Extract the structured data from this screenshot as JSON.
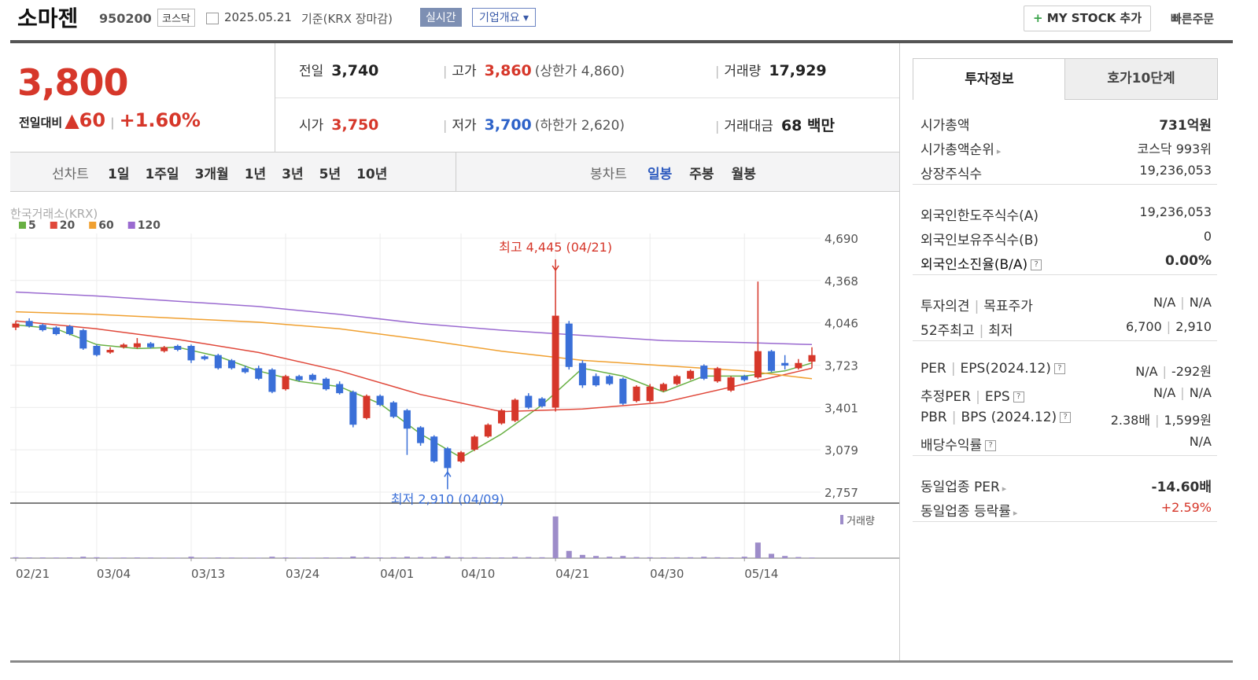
{
  "header": {
    "name": "소마젠",
    "code": "950200",
    "market": "코스닥",
    "date": "2025.05.21",
    "basis": "기준(KRX 장마감)",
    "realtime": "실시간",
    "company": "기업개요",
    "mystock": "MY STOCK 추가",
    "order": "빠른주문"
  },
  "quote": {
    "price": "3,800",
    "change_label": "전일대비",
    "change": "60",
    "change_pct": "+1.60%",
    "fields": [
      {
        "label": "전일",
        "value": "3,740"
      },
      {
        "label": "고가",
        "value": "3,860",
        "extra": "(상한가 4,860)"
      },
      {
        "label": "거래량",
        "value": "17,929"
      },
      {
        "label": "시가",
        "value": "3,750"
      },
      {
        "label": "저가",
        "value": "3,700",
        "extra": "(하한가 2,620)"
      },
      {
        "label": "거래대금",
        "value": "68 백만"
      }
    ]
  },
  "periods": {
    "label": "선차트",
    "items": [
      "1일",
      "1주일",
      "3개월",
      "1년",
      "3년",
      "5년",
      "10년"
    ],
    "candle_label": "봉차트",
    "candle_items": [
      "일봉",
      "주봉",
      "월봉"
    ]
  },
  "chart_data": {
    "type": "candlestick",
    "source": "한국거래소(KRX)",
    "categories": [
      "02/21",
      null,
      null,
      null,
      null,
      null,
      "03/04",
      null,
      null,
      null,
      null,
      null,
      null,
      "03/13",
      null,
      null,
      null,
      null,
      null,
      null,
      "03/24",
      null,
      null,
      null,
      null,
      null,
      null,
      "04/01",
      null,
      null,
      null,
      null,
      null,
      "04/10",
      null,
      null,
      null,
      null,
      null,
      null,
      "04/21",
      null,
      null,
      null,
      null,
      null,
      null,
      "04/30",
      null,
      null,
      null,
      null,
      null,
      null,
      "05/14",
      null,
      null,
      null,
      null,
      null
    ],
    "open": [
      4010,
      4060,
      4030,
      4010,
      4020,
      3990,
      3870,
      3820,
      3860,
      3860,
      3890,
      3830,
      3870,
      3870,
      3790,
      3800,
      3760,
      3700,
      3700,
      3690,
      3540,
      3640,
      3650,
      3620,
      3580,
      3520,
      3320,
      3490,
      3440,
      3380,
      3250,
      3180,
      3090,
      2990,
      3080,
      3180,
      3280,
      3300,
      3490,
      3470,
      3400,
      4040,
      3740,
      3640,
      3640,
      3620,
      3450,
      3450,
      3530,
      3580,
      3620,
      3720,
      3600,
      3530,
      3640,
      3630,
      3830,
      3740,
      3700,
      3750
    ],
    "high": [
      4060,
      4080,
      4040,
      4020,
      4030,
      4000,
      3880,
      3860,
      3890,
      3930,
      3900,
      3870,
      3880,
      3880,
      3800,
      3810,
      3770,
      3720,
      3720,
      3700,
      3650,
      3650,
      3660,
      3630,
      3600,
      3530,
      3500,
      3500,
      3450,
      3390,
      3260,
      3190,
      3100,
      3070,
      3190,
      3280,
      3390,
      3470,
      3510,
      3480,
      4445,
      4060,
      3760,
      3660,
      3650,
      3630,
      3570,
      3580,
      3590,
      3650,
      3690,
      3730,
      3710,
      3640,
      3650,
      4360,
      3840,
      3800,
      3770,
      3860
    ],
    "low": [
      3990,
      4010,
      3980,
      3950,
      3950,
      3840,
      3790,
      3810,
      3850,
      3850,
      3850,
      3820,
      3830,
      3740,
      3760,
      3690,
      3690,
      3660,
      3610,
      3510,
      3530,
      3600,
      3600,
      3530,
      3500,
      3250,
      3310,
      3410,
      3320,
      3040,
      3110,
      2980,
      2910,
      2980,
      3070,
      3170,
      3270,
      3290,
      3390,
      3400,
      3370,
      3690,
      3550,
      3560,
      3570,
      3420,
      3440,
      3440,
      3520,
      3570,
      3610,
      3610,
      3590,
      3520,
      3600,
      3620,
      3670,
      3690,
      3690,
      3700
    ],
    "close": [
      4040,
      4020,
      3990,
      3960,
      3960,
      3850,
      3800,
      3840,
      3880,
      3890,
      3860,
      3860,
      3840,
      3760,
      3770,
      3700,
      3700,
      3670,
      3620,
      3520,
      3640,
      3610,
      3610,
      3540,
      3510,
      3270,
      3490,
      3420,
      3330,
      3240,
      3130,
      2990,
      2940,
      3060,
      3180,
      3270,
      3380,
      3460,
      3400,
      3410,
      4100,
      3710,
      3570,
      3570,
      3580,
      3430,
      3560,
      3560,
      3580,
      3640,
      3680,
      3620,
      3700,
      3630,
      3610,
      3830,
      3680,
      3720,
      3740,
      3800
    ],
    "up_color": "#d6372a",
    "down_color": "#3a6fd8",
    "ylim": [
      2673,
      4726
    ],
    "yticks": [
      {
        "value": 4690,
        "label": "4,690"
      },
      {
        "value": 4368,
        "label": "4,368"
      },
      {
        "value": 4046,
        "label": "4,046"
      },
      {
        "value": 3723,
        "label": "3,723"
      },
      {
        "value": 3401,
        "label": "3,401"
      },
      {
        "value": 3079,
        "label": "3,079"
      },
      {
        "value": 2757,
        "label": "2,757"
      }
    ],
    "grid": true,
    "ma": [
      {
        "name": "5",
        "color": "#68b043",
        "x": [
          0,
          3,
          6,
          9,
          12,
          15,
          18,
          21,
          24,
          27,
          30,
          33,
          36,
          39,
          42,
          45,
          48,
          51,
          54,
          57,
          59
        ],
        "values": [
          4030,
          4000,
          3880,
          3850,
          3860,
          3790,
          3680,
          3600,
          3560,
          3430,
          3200,
          3020,
          3200,
          3420,
          3700,
          3640,
          3520,
          3640,
          3640,
          3680,
          3740
        ]
      },
      {
        "name": "20",
        "color": "#e0483a",
        "x": [
          0,
          6,
          12,
          18,
          24,
          30,
          36,
          42,
          48,
          54,
          59
        ],
        "values": [
          4060,
          4000,
          3920,
          3820,
          3680,
          3500,
          3370,
          3390,
          3440,
          3580,
          3700
        ]
      },
      {
        "name": "60",
        "color": "#f0a030",
        "x": [
          0,
          6,
          12,
          18,
          24,
          30,
          36,
          42,
          48,
          54,
          59
        ],
        "values": [
          4130,
          4110,
          4080,
          4050,
          4000,
          3920,
          3830,
          3760,
          3720,
          3680,
          3620
        ]
      },
      {
        "name": "120",
        "color": "#9a6ad0",
        "x": [
          0,
          6,
          12,
          18,
          24,
          30,
          36,
          42,
          48,
          54,
          59
        ],
        "values": [
          4280,
          4250,
          4210,
          4170,
          4110,
          4040,
          3990,
          3950,
          3910,
          3895,
          3880
        ]
      }
    ],
    "annotations": [
      {
        "text": "최고 4,445 (04/21)",
        "x": 40,
        "y": 4445,
        "color": "#d6372a"
      },
      {
        "text": "최저 2,910 (04/09)",
        "x": 32,
        "y": 2910,
        "color": "#3a6fd8"
      }
    ],
    "volume": {
      "name": "거래량",
      "color": "#9d8cc9",
      "ylim": [
        0,
        1300000
      ],
      "values": [
        25000,
        20000,
        20000,
        18000,
        22000,
        40000,
        25000,
        15000,
        18000,
        20000,
        18000,
        15000,
        15000,
        40000,
        15000,
        20000,
        18000,
        15000,
        15000,
        40000,
        20000,
        15000,
        15000,
        20000,
        18000,
        45000,
        30000,
        20000,
        25000,
        40000,
        30000,
        35000,
        50000,
        25000,
        25000,
        20000,
        20000,
        35000,
        30000,
        25000,
        1150000,
        200000,
        90000,
        60000,
        40000,
        60000,
        30000,
        25000,
        20000,
        25000,
        25000,
        40000,
        25000,
        20000,
        40000,
        430000,
        120000,
        60000,
        30000,
        17929
      ]
    }
  },
  "info": {
    "tabs": [
      "투자정보",
      "호가10단계"
    ],
    "groups": [
      [
        {
          "label": [
            "시가총액"
          ],
          "value": [
            "731억원"
          ],
          "bold": true
        },
        {
          "label": [
            "시가총액순위"
          ],
          "value": [
            "코스닥 993위"
          ],
          "arrow": true
        },
        {
          "label": [
            "상장주식수"
          ],
          "value": [
            "19,236,053"
          ]
        }
      ],
      [
        {
          "label": [
            "외국인한도주식수(A)"
          ],
          "value": [
            "19,236,053"
          ]
        },
        {
          "label": [
            "외국인보유주식수(B)"
          ],
          "value": [
            "0"
          ]
        },
        {
          "label": [
            "외국인소진율(B/A)"
          ],
          "value": [
            "0.00%"
          ],
          "bold": true,
          "help": true
        }
      ],
      [
        {
          "label": [
            "투자의견",
            "목표주가"
          ],
          "value": [
            "N/A",
            "N/A"
          ]
        },
        {
          "label": [
            "52주최고",
            "최저"
          ],
          "value": [
            "6,700",
            "2,910"
          ]
        }
      ],
      [
        {
          "label": [
            "PER",
            "EPS(2024.12)"
          ],
          "value": [
            "N/A",
            "-292원"
          ],
          "help": true
        },
        {
          "label": [
            "추정PER",
            "EPS"
          ],
          "value": [
            "N/A",
            "N/A"
          ],
          "help": true
        },
        {
          "label": [
            "PBR",
            "BPS (2024.12)"
          ],
          "value": [
            "2.38배",
            "1,599원"
          ],
          "help": true
        },
        {
          "label": [
            "배당수익률"
          ],
          "value": [
            "N/A"
          ],
          "help": true
        }
      ],
      [
        {
          "label": [
            "동일업종 PER"
          ],
          "value": [
            "-14.60배"
          ],
          "bold": true,
          "arrow": true
        },
        {
          "label": [
            "동일업종 등락률"
          ],
          "value": [
            "+2.59%"
          ],
          "up": true,
          "arrow": true
        }
      ]
    ]
  }
}
